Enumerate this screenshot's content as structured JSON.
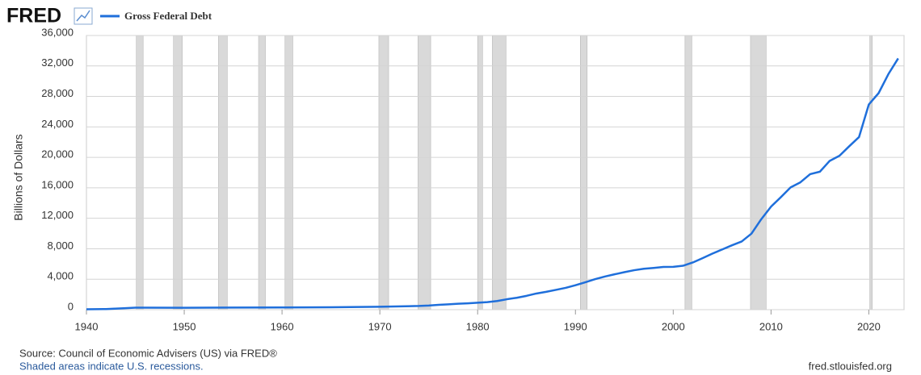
{
  "logo": "FRED",
  "chart_data": {
    "type": "line",
    "ylabel": "Billions of Dollars",
    "x": [
      1940,
      1942,
      1944,
      1945,
      1946,
      1950,
      1955,
      1960,
      1965,
      1970,
      1974,
      1975,
      1976,
      1977,
      1978,
      1979,
      1980,
      1981,
      1982,
      1983,
      1984,
      1985,
      1986,
      1987,
      1988,
      1989,
      1990,
      1991,
      1992,
      1993,
      1994,
      1995,
      1996,
      1997,
      1998,
      1999,
      2000,
      2001,
      2002,
      2003,
      2004,
      2005,
      2006,
      2007,
      2008,
      2009,
      2010,
      2011,
      2012,
      2013,
      2014,
      2015,
      2016,
      2017,
      2018,
      2019,
      2020,
      2021,
      2022,
      2023
    ],
    "series": [
      {
        "name": "Gross Federal Debt",
        "color": "#1f6fdb",
        "values": [
          51,
          79,
          204,
          260,
          271,
          257,
          274,
          291,
          322,
          381,
          484,
          542,
          629,
          706,
          777,
          829,
          909,
          995,
          1137,
          1372,
          1565,
          1817,
          2121,
          2346,
          2601,
          2868,
          3206,
          3598,
          4002,
          4351,
          4643,
          4921,
          5182,
          5369,
          5478,
          5606,
          5629,
          5770,
          6198,
          6760,
          7355,
          7905,
          8451,
          8951,
          9986,
          11876,
          13529,
          14764,
          16051,
          16719,
          17794,
          18120,
          19539,
          20206,
          21462,
          22669,
          26945,
          28429,
          30929,
          32989
        ]
      }
    ],
    "recessions": [
      [
        1945.1,
        1945.8
      ],
      [
        1948.9,
        1949.8
      ],
      [
        1953.5,
        1954.4
      ],
      [
        1957.6,
        1958.3
      ],
      [
        1960.3,
        1961.1
      ],
      [
        1969.9,
        1970.9
      ],
      [
        1973.9,
        1975.2
      ],
      [
        1980.0,
        1980.5
      ],
      [
        1981.5,
        1982.9
      ],
      [
        1990.5,
        1991.2
      ],
      [
        2001.2,
        2001.9
      ],
      [
        2007.9,
        2009.5
      ],
      [
        2020.1,
        2020.3
      ]
    ],
    "recession_color": "#d9d9d9",
    "xlim": [
      1940,
      2023.6
    ],
    "xticks": [
      1940,
      1950,
      1960,
      1970,
      1980,
      1990,
      2000,
      2010,
      2020
    ],
    "ylim": [
      0,
      36000
    ],
    "yticks": [
      0,
      {
        "value": 4000,
        "label": "4,000"
      },
      {
        "value": 8000,
        "label": "8,000"
      },
      {
        "value": 12000,
        "label": "12,000"
      },
      {
        "value": 16000,
        "label": "16,000"
      },
      {
        "value": 20000,
        "label": "20,000"
      },
      {
        "value": 24000,
        "label": "24,000"
      },
      {
        "value": 28000,
        "label": "28,000"
      },
      {
        "value": 32000,
        "label": "32,000"
      },
      {
        "value": 36000,
        "label": "36,000"
      }
    ],
    "grid": true
  },
  "footer": {
    "source": "Source: Council of Economic Advisers (US) via FRED®",
    "note": "Shaded areas indicate U.S. recessions.",
    "site": "fred.stlouisfed.org"
  }
}
